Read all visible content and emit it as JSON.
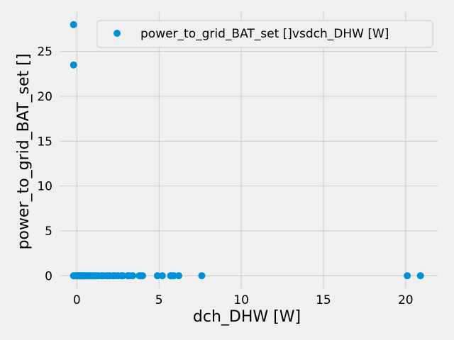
{
  "colors": {
    "background": "#f0f0f0",
    "grid": "#cbcbcb",
    "point": "#008fd5"
  },
  "chart_data": {
    "type": "scatter",
    "title": "",
    "xlabel": "dch_DHW [W]",
    "ylabel": "power_to_grid_BAT_set []",
    "xlim": [
      -1.05,
      21.95
    ],
    "ylim": [
      -1.4,
      29.4
    ],
    "xticks": [
      0,
      5,
      10,
      15,
      20
    ],
    "yticks": [
      0,
      5,
      10,
      15,
      20,
      25
    ],
    "grid": true,
    "legend": {
      "position": "top-right",
      "entries": [
        "power_to_grid_BAT_set []vsdch_DHW [W]"
      ]
    },
    "series": [
      {
        "name": "power_to_grid_BAT_set []vsdch_DHW [W]",
        "color": "#008fd5",
        "points": [
          [
            -0.2,
            28.0
          ],
          [
            -0.2,
            23.5
          ],
          [
            -0.2,
            0
          ],
          [
            -0.1,
            0
          ],
          [
            0.0,
            0
          ],
          [
            0.05,
            0
          ],
          [
            0.1,
            0
          ],
          [
            0.15,
            0
          ],
          [
            0.2,
            0
          ],
          [
            0.25,
            0
          ],
          [
            0.3,
            0
          ],
          [
            0.35,
            0
          ],
          [
            0.4,
            0
          ],
          [
            0.45,
            0
          ],
          [
            0.5,
            0
          ],
          [
            0.55,
            0
          ],
          [
            0.6,
            0
          ],
          [
            0.7,
            0
          ],
          [
            0.8,
            0
          ],
          [
            0.9,
            0
          ],
          [
            1.0,
            0
          ],
          [
            1.1,
            0
          ],
          [
            1.2,
            0
          ],
          [
            1.3,
            0
          ],
          [
            1.5,
            0
          ],
          [
            1.6,
            0
          ],
          [
            1.8,
            0
          ],
          [
            1.9,
            0
          ],
          [
            2.0,
            0
          ],
          [
            2.2,
            0
          ],
          [
            2.3,
            0
          ],
          [
            2.5,
            0
          ],
          [
            2.7,
            0
          ],
          [
            2.8,
            0
          ],
          [
            3.1,
            0
          ],
          [
            3.2,
            0
          ],
          [
            3.4,
            0
          ],
          [
            3.8,
            0
          ],
          [
            3.9,
            0
          ],
          [
            4.0,
            0
          ],
          [
            4.9,
            0
          ],
          [
            5.2,
            0
          ],
          [
            5.7,
            0
          ],
          [
            5.8,
            0
          ],
          [
            5.9,
            0
          ],
          [
            6.2,
            0
          ],
          [
            7.6,
            0
          ],
          [
            20.1,
            0
          ],
          [
            20.9,
            0
          ]
        ]
      }
    ]
  }
}
